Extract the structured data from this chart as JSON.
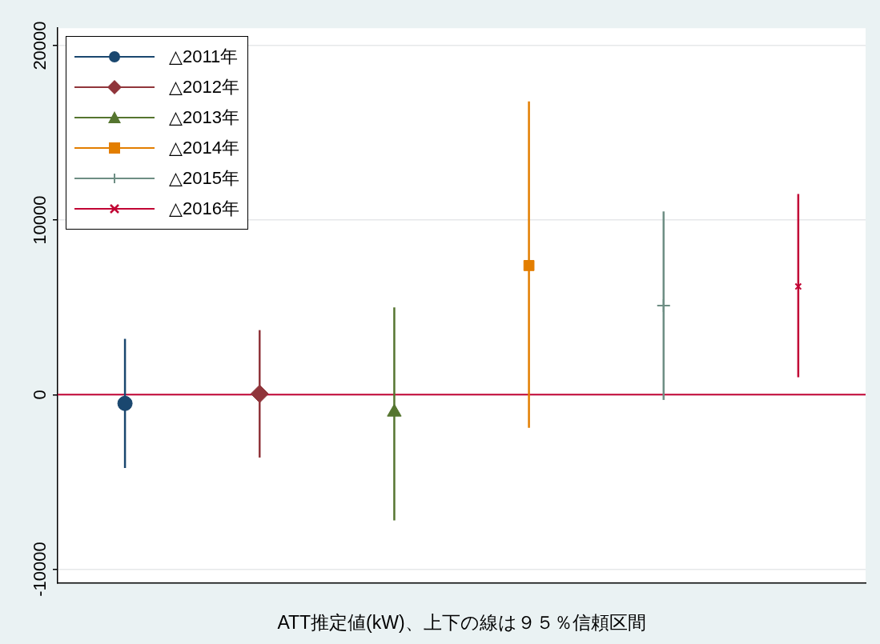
{
  "chart_data": {
    "type": "scatter",
    "xlabel": "ATT推定値(kW)、上下の線は９５％信頼区間",
    "categories": [
      null,
      null,
      null,
      null,
      null,
      null
    ],
    "ylim": [
      -10800,
      21000
    ],
    "yticks": [
      -10000,
      0,
      10000,
      20000
    ],
    "grid": "y",
    "legend": "top left",
    "ref_lines": [
      {
        "axis": "y",
        "value": 0,
        "label": null,
        "color": "#c10534"
      }
    ],
    "series": [
      {
        "name": "△2011年",
        "color": "#1a476f",
        "marker": "circle",
        "values": [
          -500,
          null,
          null,
          null,
          null,
          null
        ],
        "errors": [
          [
            -4200,
            3200
          ],
          null,
          null,
          null,
          null,
          null
        ]
      },
      {
        "name": "△2012年",
        "color": "#90353b",
        "marker": "diamond",
        "values": [
          null,
          50,
          null,
          null,
          null,
          null
        ],
        "errors": [
          null,
          [
            -3600,
            3700
          ],
          null,
          null,
          null,
          null
        ]
      },
      {
        "name": "△2013年",
        "color": "#55752f",
        "marker": "triangle",
        "values": [
          null,
          null,
          -1000,
          null,
          null,
          null
        ],
        "errors": [
          null,
          null,
          [
            -7200,
            5000
          ],
          null,
          null,
          null
        ]
      },
      {
        "name": "△2014年",
        "color": "#e37e00",
        "marker": "square",
        "values": [
          null,
          null,
          null,
          7400,
          null,
          null
        ],
        "errors": [
          null,
          null,
          null,
          [
            -1900,
            16800
          ],
          null,
          null
        ]
      },
      {
        "name": "△2015年",
        "color": "#6e8e84",
        "marker": "plus",
        "values": [
          null,
          null,
          null,
          null,
          5100,
          null
        ],
        "errors": [
          null,
          null,
          null,
          null,
          [
            -300,
            10500
          ],
          null
        ]
      },
      {
        "name": "△2016年",
        "color": "#c10534",
        "marker": "cross",
        "values": [
          null,
          null,
          null,
          null,
          null,
          6200
        ],
        "errors": [
          null,
          null,
          null,
          null,
          null,
          [
            1000,
            11500
          ]
        ]
      }
    ]
  }
}
